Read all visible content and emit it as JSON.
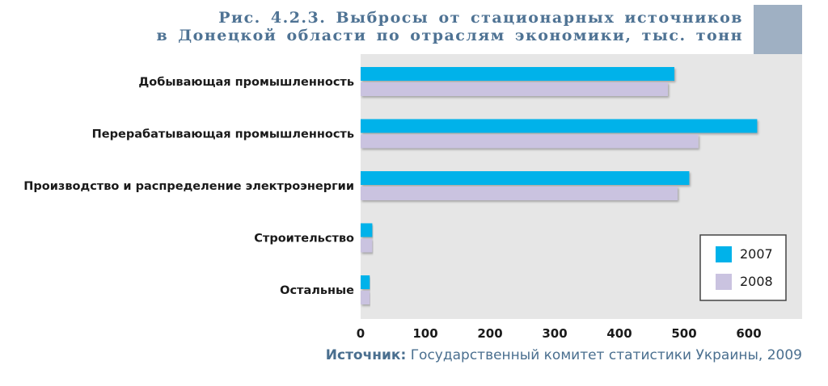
{
  "chart_data": {
    "type": "bar",
    "orientation": "horizontal",
    "title_line1": "Рис. 4.2.3. Выбросы от стационарных источников",
    "title_line2": "в Донецкой области по отраслям экономики, тыс. тонн",
    "categories": [
      "Добывающая промышленность",
      "Перерабатывающая промышленность",
      "Производство и распределение электроэнергии",
      "Строительство",
      "Остальные"
    ],
    "series": [
      {
        "name": "2007",
        "color": "#00b2ea",
        "values": [
          485,
          613,
          508,
          18,
          14
        ]
      },
      {
        "name": "2008",
        "color": "#cac3e0",
        "values": [
          475,
          522,
          490,
          18,
          14
        ]
      }
    ],
    "xlim": [
      0,
      700
    ],
    "xticks": [
      0,
      100,
      200,
      300,
      400,
      500,
      600
    ],
    "legend_position": "bottom-right",
    "grid": false
  },
  "source": {
    "label": "Источник:",
    "text": "Государственный комитет статистики Украины, 2009"
  }
}
